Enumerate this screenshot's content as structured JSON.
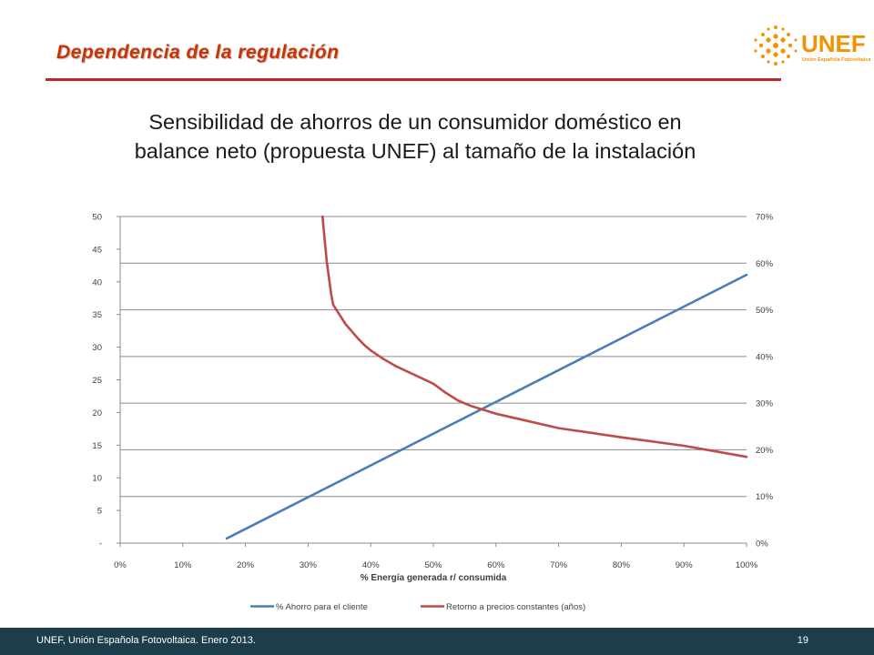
{
  "slide": {
    "title": "Dependencia de la regulación",
    "subtitle_line1": "Sensibilidad de ahorros de un consumidor doméstico en",
    "subtitle_line2": "balance neto (propuesta UNEF) al tamaño de la instalación"
  },
  "logo": {
    "name": "UNEF",
    "tagline": "Unión Española Fotovoltaica"
  },
  "footer": {
    "left_text": "UNEF, Unión Española Fotovoltaica. Enero 2013.",
    "page_number": "19"
  },
  "colors": {
    "title": "#cc3300",
    "rule": "#c0272d",
    "series_blue": "#4a7ebb",
    "series_red": "#be4b48",
    "footer_bg": "#1e3d4a",
    "logo_orange": "#f39200"
  },
  "chart_data": {
    "type": "line",
    "title": "",
    "xlabel": "% Energía generada r/ consumida",
    "ylabel": "",
    "y2label": "",
    "xlim": [
      0,
      100
    ],
    "ylim": [
      0,
      50
    ],
    "y2lim": [
      0,
      70
    ],
    "x_ticks": [
      "0%",
      "10%",
      "20%",
      "30%",
      "40%",
      "50%",
      "60%",
      "70%",
      "80%",
      "90%",
      "100%"
    ],
    "y_ticks": [
      "-",
      "5",
      "10",
      "15",
      "20",
      "25",
      "30",
      "35",
      "40",
      "45",
      "50"
    ],
    "y2_ticks": [
      "0%",
      "10%",
      "20%",
      "30%",
      "40%",
      "50%",
      "60%",
      "70%"
    ],
    "grid": "horizontal",
    "legend_position": "bottom",
    "series": [
      {
        "name": "% Ahorro para el cliente",
        "axis": "right",
        "color": "#4a7ebb",
        "x": [
          17,
          100
        ],
        "y": [
          1,
          57.5
        ]
      },
      {
        "name": "Retorno a precios constantes (años)",
        "axis": "left",
        "color": "#be4b48",
        "x": [
          32.3,
          33,
          33.7,
          34,
          35,
          36,
          37,
          38,
          39,
          40,
          42,
          44,
          46,
          48,
          50,
          52,
          54,
          56,
          60,
          65,
          70,
          80,
          90,
          100
        ],
        "y": [
          50,
          43,
          38,
          36.5,
          35,
          33.5,
          32.4,
          31.3,
          30.3,
          29.5,
          28.2,
          27.1,
          26.2,
          25.3,
          24.4,
          23,
          21.8,
          21,
          19.8,
          18.7,
          17.6,
          16.2,
          14.9,
          13.2
        ]
      }
    ]
  }
}
